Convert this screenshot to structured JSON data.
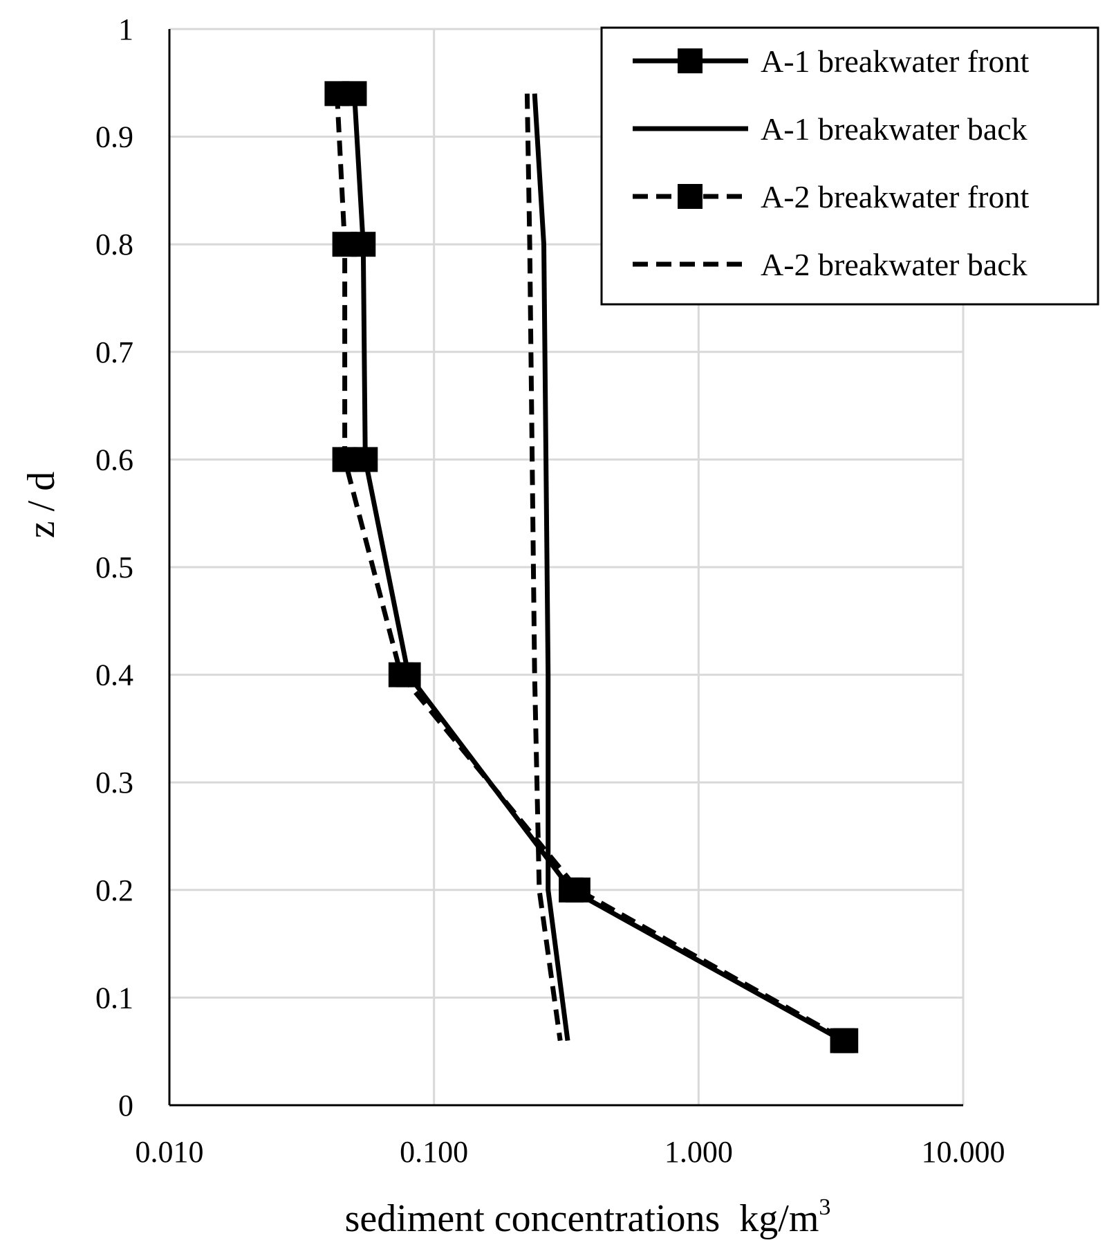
{
  "chart_data": {
    "type": "line",
    "title": "",
    "xlabel": "sediment concentrations  kg/m",
    "xlabel_superscript": "3",
    "ylabel": "z / d",
    "x_scale": "log",
    "xlim": [
      0.01,
      10
    ],
    "ylim": [
      0,
      1
    ],
    "x_ticks": [
      0.01,
      0.1,
      1,
      10
    ],
    "x_tick_labels": [
      "0.010",
      "0.100",
      "1.000",
      "10.000"
    ],
    "y_ticks": [
      0,
      0.1,
      0.2,
      0.3,
      0.4,
      0.5,
      0.6,
      0.7,
      0.8,
      0.9,
      1
    ],
    "y_tick_labels": [
      "0",
      "0.1",
      "0.2",
      "0.3",
      "0.4",
      "0.5",
      "0.6",
      "0.7",
      "0.8",
      "0.9",
      "1"
    ],
    "grid": true,
    "legend_position": "top-right",
    "colors": {
      "line": "#000000",
      "grid": "#d9d9d9",
      "ylabel": "#1f6f8b"
    },
    "series": [
      {
        "name": "A-1 breakwater front",
        "style": "solid",
        "marker": "square",
        "x": [
          0.05,
          0.054,
          0.055,
          0.08,
          0.33,
          3.5
        ],
        "y": [
          0.94,
          0.8,
          0.6,
          0.4,
          0.2,
          0.06
        ]
      },
      {
        "name": "A-1 breakwater back",
        "style": "solid",
        "marker": "none",
        "x": [
          0.24,
          0.26,
          0.27,
          0.27,
          0.32
        ],
        "y": [
          0.94,
          0.8,
          0.4,
          0.2,
          0.06
        ]
      },
      {
        "name": "A-2 breakwater front",
        "style": "dashed",
        "marker": "square",
        "x": [
          0.043,
          0.046,
          0.046,
          0.075,
          0.35,
          3.6
        ],
        "y": [
          0.94,
          0.8,
          0.6,
          0.4,
          0.2,
          0.06
        ]
      },
      {
        "name": "A-2 breakwater back",
        "style": "dashed",
        "marker": "none",
        "x": [
          0.225,
          0.23,
          0.24,
          0.25,
          0.3
        ],
        "y": [
          0.94,
          0.8,
          0.4,
          0.2,
          0.06
        ]
      }
    ]
  }
}
